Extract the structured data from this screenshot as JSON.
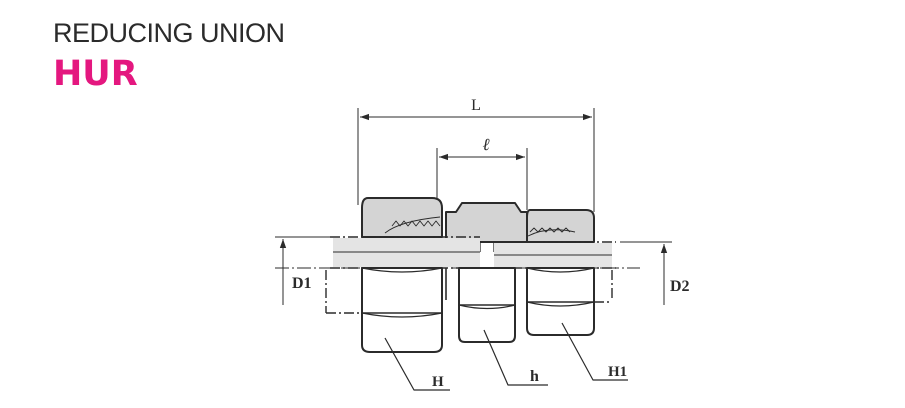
{
  "header": {
    "subtitle": "REDUCING UNION",
    "title": "HUR"
  },
  "drawing": {
    "labels": {
      "overall_length": "L",
      "inner_length": "ℓ",
      "tube_od_left": "D1",
      "tube_od_right": "D2",
      "nut_hex_left": "H",
      "body_hex": "h",
      "nut_hex_right": "H1"
    }
  },
  "colors": {
    "title": "#e4177f",
    "line": "#2b2b2b",
    "fill": "#d4d4d4"
  }
}
